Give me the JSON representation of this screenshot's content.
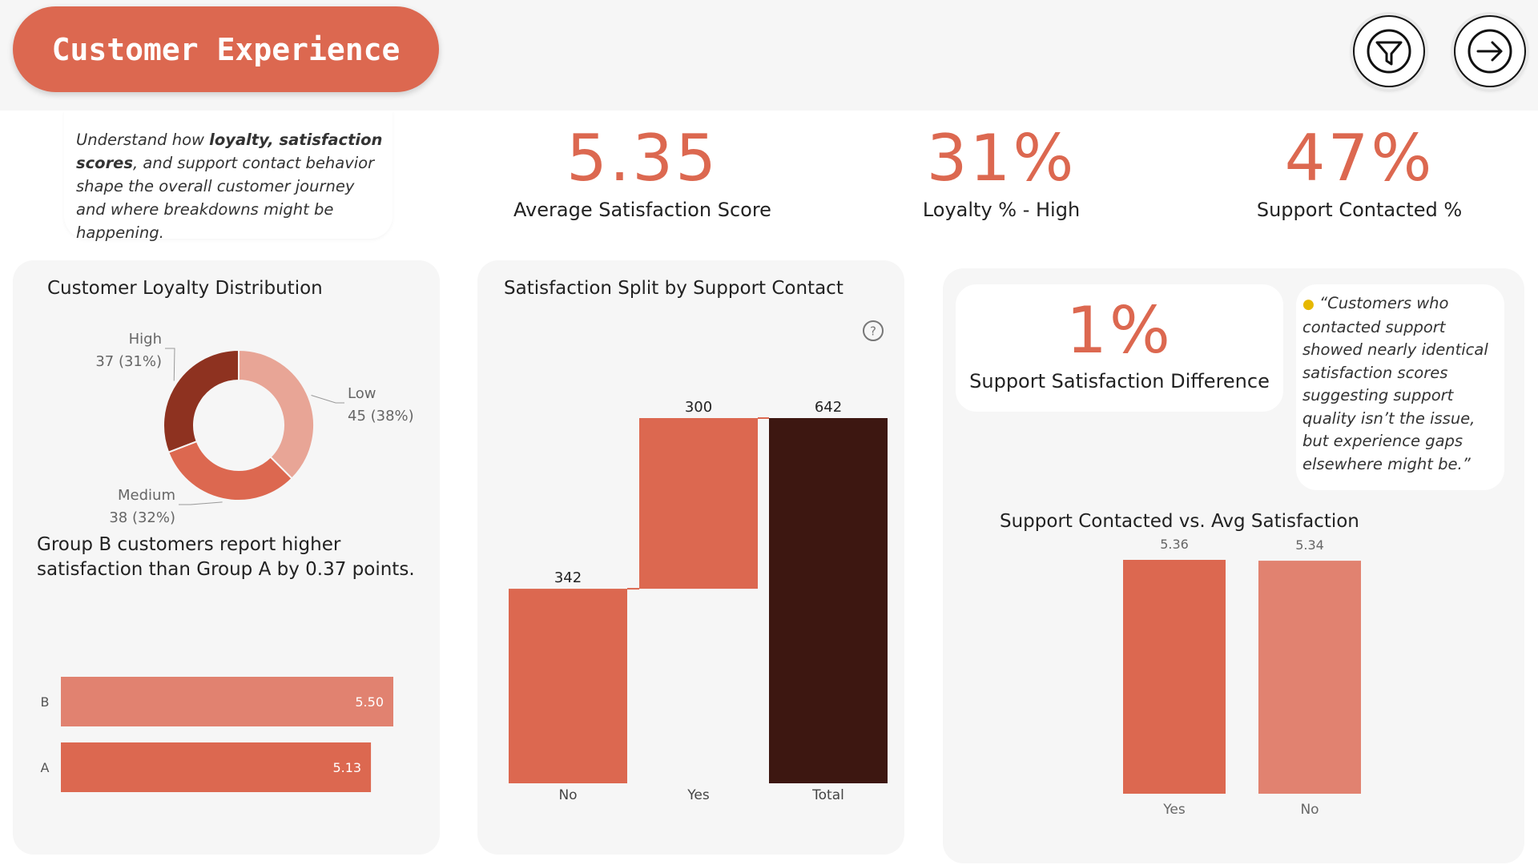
{
  "header": {
    "title": "Customer Experience"
  },
  "icons": {
    "filter": "filter-icon",
    "next": "arrow-right-icon",
    "help": "help-icon",
    "bulb": "lightbulb-icon"
  },
  "colors": {
    "accent": "#dc6850",
    "dark": "#3d1711",
    "mid": "#8e3220",
    "light": "#e8a596",
    "bar_light": "#e18270"
  },
  "intro": {
    "pre": "Understand how ",
    "bold": "loyalty, satisfaction scores",
    "post": ", and support contact behavior shape the overall customer journey and where breakdowns might be happening."
  },
  "kpis": [
    {
      "value": "5.35",
      "label": "Average Satisfaction Score"
    },
    {
      "value": "31%",
      "label": "Loyalty % - High"
    },
    {
      "value": "47%",
      "label": "Support Contacted %"
    }
  ],
  "loyalty": {
    "title": "Customer Loyalty Distribution",
    "insight": "Group B customers report higher satisfaction than Group A by 0.37 points."
  },
  "waterfall": {
    "title": "Satisfaction Split by Support Contact"
  },
  "support_diff": {
    "value": "1%",
    "label": "Support Satisfaction Difference"
  },
  "quote": "“Customers who contacted support showed nearly identical satisfaction scores suggesting support quality isn’t the issue, but experience gaps elsewhere might be.”",
  "contacted_chart": {
    "title": "Support Contacted vs. Avg Satisfaction"
  },
  "chart_data": [
    {
      "type": "pie",
      "title": "Customer Loyalty Distribution",
      "donut": true,
      "slices": [
        {
          "label": "Low",
          "value": 45,
          "pct": "38%",
          "color": "#e8a596"
        },
        {
          "label": "Medium",
          "value": 38,
          "pct": "32%",
          "color": "#dc6850"
        },
        {
          "label": "High",
          "value": 37,
          "pct": "31%",
          "color": "#8e3220"
        }
      ]
    },
    {
      "type": "bar",
      "orientation": "horizontal",
      "categories": [
        "B",
        "A"
      ],
      "values": [
        5.5,
        5.13
      ],
      "value_labels": [
        "5.50",
        "5.13"
      ],
      "xlim": [
        0,
        5.5
      ]
    },
    {
      "type": "bar",
      "subtype": "waterfall",
      "title": "Satisfaction Split by Support Contact",
      "categories": [
        "No",
        "Yes",
        "Total"
      ],
      "values": [
        342,
        300,
        642
      ],
      "value_labels": [
        "342",
        "300",
        "642"
      ],
      "ylim": [
        0,
        642
      ]
    },
    {
      "type": "bar",
      "title": "Support Contacted vs. Avg Satisfaction",
      "categories": [
        "Yes",
        "No"
      ],
      "values": [
        5.36,
        5.34
      ],
      "value_labels": [
        "5.36",
        "5.34"
      ],
      "ylim": [
        0,
        5.36
      ]
    }
  ]
}
